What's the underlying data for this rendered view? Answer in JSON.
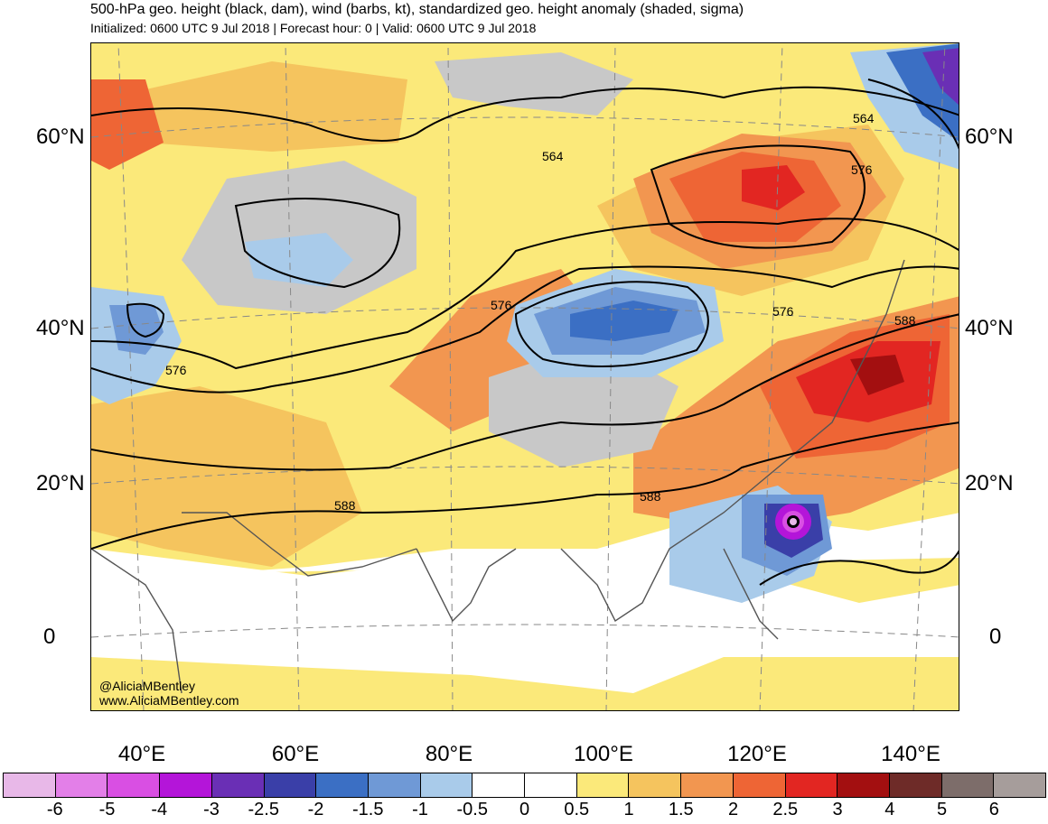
{
  "title": "500-hPa geo. height (black, dam), wind (barbs, kt), standardized geo. height anomaly (shaded, sigma)",
  "subtitle": "Initialized: 0600 UTC 9 Jul 2018 | Forecast hour: 0 | Valid: 0600 UTC 9 Jul 2018",
  "lat_labels": [
    "60°N",
    "40°N",
    "20°N",
    "0"
  ],
  "lon_labels": [
    "40°E",
    "60°E",
    "80°E",
    "100°E",
    "120°E",
    "140°E"
  ],
  "credit": {
    "handle": "@AliciaMBentley",
    "website": "www.AliciaMBentley.com"
  },
  "contour_labels": [
    "564",
    "564",
    "576",
    "576",
    "576",
    "576",
    "588",
    "588",
    "588"
  ],
  "colorbar": {
    "colors": [
      "#e8b8e8",
      "#e37fe8",
      "#d94fe3",
      "#b415d9",
      "#6a2fb5",
      "#3a3fa8",
      "#3b6fc4",
      "#6f99d6",
      "#a9cbea",
      "#ffffff",
      "#ffffff",
      "#fbe97a",
      "#f5c45e",
      "#f29650",
      "#ee6535",
      "#e22622",
      "#a30f10",
      "#6e2b28",
      "#7d6d6a",
      "#a69d9b"
    ],
    "labels": [
      "-6",
      "-5",
      "-4",
      "-3",
      "-2.5",
      "-2",
      "-1.5",
      "-1",
      "-0.5",
      "0",
      "0.5",
      "1",
      "1.5",
      "2",
      "2.5",
      "3",
      "4",
      "5",
      "6"
    ]
  }
}
